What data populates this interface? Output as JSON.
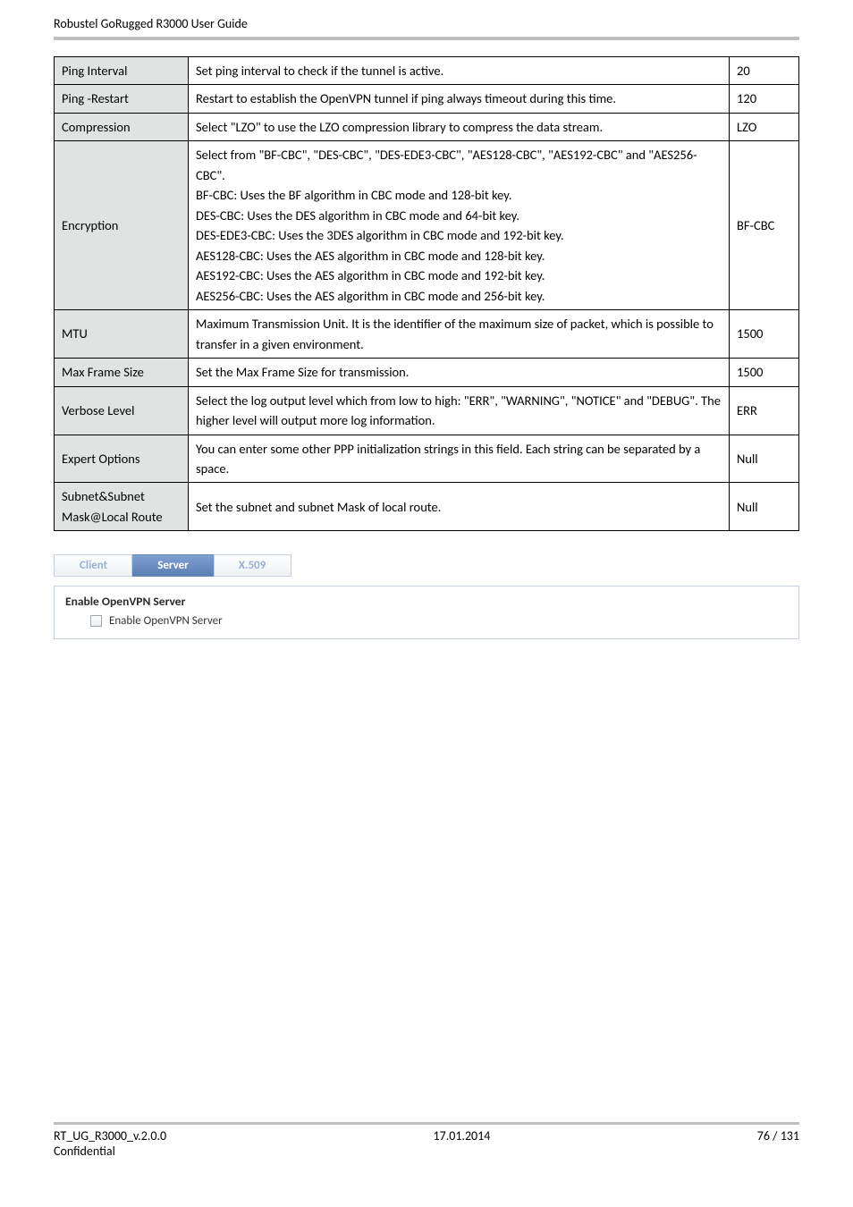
{
  "header": {
    "title": "Robustel GoRugged R3000 User Guide"
  },
  "spec_table": {
    "rows": [
      {
        "label": "Ping Interval",
        "desc": "Set ping interval to check if the tunnel is active.",
        "default": "20"
      },
      {
        "label": "Ping -Restart",
        "desc": "Restart to establish the OpenVPN tunnel if ping always timeout during this time.",
        "default": "120"
      },
      {
        "label": "Compression",
        "desc": "Select \"LZO\" to use the LZO compression library to compress the data stream.",
        "default": "LZO"
      },
      {
        "label": "Encryption",
        "desc": "Select from \"BF-CBC\", \"DES-CBC\", \"DES-EDE3-CBC\", \"AES128-CBC\", \"AES192-CBC\" and \"AES256-CBC\".\nBF-CBC: Uses the BF algorithm in CBC mode and 128-bit key.\nDES-CBC: Uses the DES algorithm in CBC mode and 64-bit key.\nDES-EDE3-CBC: Uses the 3DES algorithm in CBC mode and 192-bit key.\nAES128-CBC: Uses the AES algorithm in CBC mode and 128-bit key.\nAES192-CBC: Uses the AES algorithm in CBC mode and 192-bit key.\nAES256-CBC: Uses the AES algorithm in CBC mode and 256-bit key.",
        "default": "BF-CBC"
      },
      {
        "label": "MTU",
        "desc": "Maximum Transmission Unit. It is the identifier of the maximum size of packet, which is possible to transfer in a given environment.",
        "default": "1500"
      },
      {
        "label": "Max Frame Size",
        "desc": "Set the Max Frame Size for transmission.",
        "default": "1500"
      },
      {
        "label": "Verbose Level",
        "desc": "Select the log output level which from low to high: \"ERR\", \"WARNING\", \"NOTICE\" and \"DEBUG\". The higher level will output more log information.",
        "default": "ERR"
      },
      {
        "label": "Expert Options",
        "desc": "You can enter some other PPP initialization strings in this field. Each string can be separated by a space.",
        "default": "Null"
      },
      {
        "label": "Subnet&Subnet Mask@Local Route",
        "desc": "Set the subnet and subnet Mask of local route.",
        "default": "Null"
      }
    ]
  },
  "tabs": {
    "items": [
      {
        "label": "Client",
        "active": false
      },
      {
        "label": "Server",
        "active": true
      },
      {
        "label": "X.509",
        "active": false
      }
    ]
  },
  "panel": {
    "title": "Enable OpenVPN Server",
    "checkbox_label": "Enable OpenVPN Server"
  },
  "footer": {
    "left": "RT_UG_R3000_v.2.0.0",
    "center": "17.01.2014",
    "right": "76 / 131",
    "second": "Confidential"
  }
}
